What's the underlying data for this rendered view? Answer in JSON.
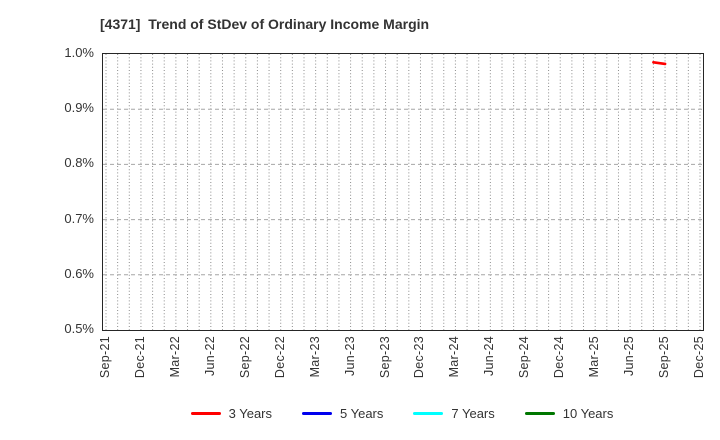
{
  "chart_data": {
    "type": "line",
    "title": "[4371]  Trend of StDev of Ordinary Income Margin",
    "x_start": "Sep-21",
    "x_end": "Dec-25",
    "n_months": 52,
    "x_label_every": 3,
    "x_tick_labels": [
      "Sep-21",
      "Dec-21",
      "Mar-22",
      "Jun-22",
      "Sep-22",
      "Dec-22",
      "Mar-23",
      "Jun-23",
      "Sep-23",
      "Dec-23",
      "Mar-24",
      "Jun-24",
      "Sep-24",
      "Dec-24",
      "Mar-25",
      "Jun-25",
      "Sep-25",
      "Dec-25"
    ],
    "ylim": [
      0.5,
      1.0
    ],
    "y_unit": "%",
    "y_ticks": [
      "1.0%",
      "0.9%",
      "0.8%",
      "0.7%",
      "0.6%",
      "0.5%"
    ],
    "y_tick_values": [
      1.0,
      0.9,
      0.8,
      0.7,
      0.6,
      0.5
    ],
    "grid": {
      "vertical": "dotted, monthly",
      "horizontal": "dashed, every 0.1%"
    },
    "legend_position": "bottom",
    "series": [
      {
        "name": "3 Years",
        "color": "#ff0000",
        "points": [
          {
            "x": "Aug-25",
            "month_index": 47,
            "value": 0.985
          },
          {
            "x": "Sep-25",
            "month_index": 48,
            "value": 0.982
          }
        ]
      },
      {
        "name": "5 Years",
        "color": "#0000ee",
        "points": []
      },
      {
        "name": "7 Years",
        "color": "#00ffff",
        "points": []
      },
      {
        "name": "10 Years",
        "color": "#007700",
        "points": []
      }
    ]
  }
}
